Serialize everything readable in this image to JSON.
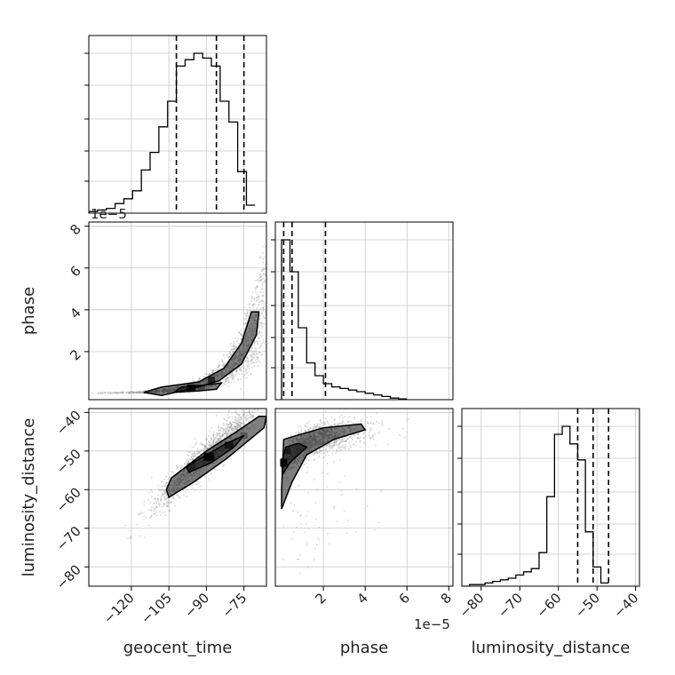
{
  "chart_data": {
    "type": "corner",
    "parameters": [
      "geocent_time",
      "phase",
      "luminosity_distance"
    ],
    "offset_labels": {
      "phase_y": "1e−5",
      "phase_x": "1e−5"
    },
    "ranges": {
      "geocent_time": [
        -137,
        -66
      ],
      "phase": [
        -0.3,
        8.2
      ],
      "phase_scale": "1e-5",
      "luminosity_distance": [
        -85,
        -39
      ]
    },
    "ticks": {
      "geocent_time": {
        "values": [
          -120,
          -105,
          -90,
          -75
        ],
        "labels": [
          "−120",
          "−105",
          "−90",
          "−75"
        ]
      },
      "phase": {
        "values": [
          2,
          4,
          6,
          8
        ],
        "labels": [
          "2",
          "4",
          "6",
          "8"
        ]
      },
      "luminosity_distance": {
        "values": [
          -80,
          -70,
          -60,
          -50,
          -40
        ],
        "labels": [
          "−80",
          "−70",
          "−60",
          "−50",
          "−40"
        ]
      }
    },
    "histograms": {
      "geocent_time": {
        "bin_start": -137,
        "bin_width": 3.5,
        "counts": [
          0.01,
          0.02,
          0.03,
          0.06,
          0.09,
          0.14,
          0.27,
          0.38,
          0.54,
          0.7,
          0.92,
          0.96,
          1.0,
          0.97,
          0.92,
          0.7,
          0.57,
          0.26,
          0.05
        ],
        "quantiles": [
          -102,
          -86,
          -75
        ]
      },
      "phase": {
        "bin_start": 0.0,
        "bin_width": 0.4,
        "counts": [
          1.0,
          0.8,
          0.45,
          0.23,
          0.15,
          0.1,
          0.08,
          0.07,
          0.06,
          0.05,
          0.04,
          0.03,
          0.02,
          0.01,
          0.005
        ],
        "quantiles": [
          0.1,
          0.5,
          2.1
        ]
      },
      "luminosity_distance": {
        "bin_start": -85,
        "bin_width": 2.0,
        "counts": [
          0.0,
          0.01,
          0.01,
          0.02,
          0.03,
          0.04,
          0.05,
          0.07,
          0.09,
          0.11,
          0.21,
          0.56,
          0.95,
          1.0,
          0.89,
          0.79,
          0.34,
          0.12,
          0.02
        ],
        "quantiles": [
          -55,
          -51,
          -47
        ]
      }
    },
    "ticklabel_rotation_deg": -45,
    "grid": true,
    "contours": "1 and 2 sigma, black",
    "scatter_color": "#9a9a9a",
    "line_color": "#000000"
  }
}
